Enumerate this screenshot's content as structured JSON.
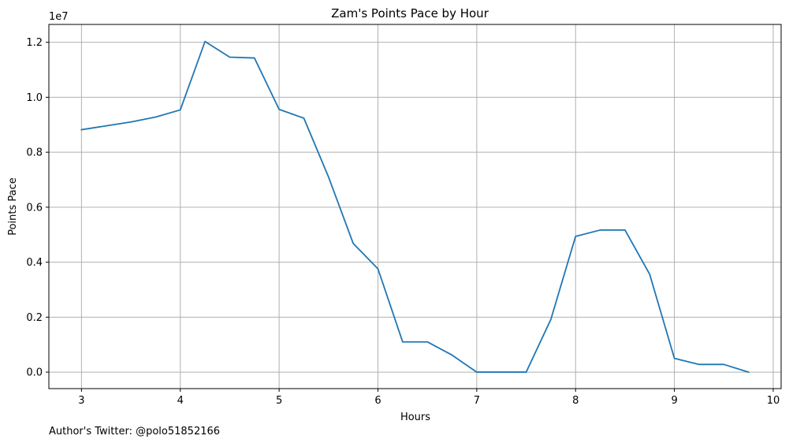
{
  "chart_data": {
    "type": "line",
    "title": "Zam's Points Pace by Hour",
    "xlabel": "Hours",
    "ylabel": "Points Pace",
    "y_offset_label": "1e7",
    "xlim": [
      2.67,
      10.08
    ],
    "ylim": [
      -600000,
      12650000
    ],
    "x_ticks": [
      3,
      4,
      5,
      6,
      7,
      8,
      9,
      10
    ],
    "x_tick_labels": [
      "3",
      "4",
      "5",
      "6",
      "7",
      "8",
      "9",
      "10"
    ],
    "y_ticks": [
      0,
      2000000,
      4000000,
      6000000,
      8000000,
      10000000,
      12000000
    ],
    "y_tick_labels": [
      "0.0",
      "0.2",
      "0.4",
      "0.6",
      "0.8",
      "1.0",
      "1.2"
    ],
    "grid": true,
    "series": [
      {
        "color": "#1f77b4",
        "x": [
          3,
          3.25,
          3.5,
          3.75,
          4,
          4.25,
          4.5,
          4.75,
          5,
          5.25,
          5.5,
          5.75,
          6,
          6.25,
          6.5,
          6.75,
          7,
          7.25,
          7.5,
          7.75,
          8,
          8.25,
          8.5,
          8.75,
          9,
          9.25,
          9.5,
          9.75
        ],
        "y": [
          8820000,
          8960000,
          9100000,
          9280000,
          9540000,
          12030000,
          11460000,
          11430000,
          9560000,
          9240000,
          7100000,
          4680000,
          3760000,
          1100000,
          1100000,
          620000,
          0,
          0,
          0,
          1920000,
          4940000,
          5170000,
          5170000,
          3560000,
          500000,
          280000,
          280000,
          0
        ]
      }
    ]
  },
  "footer": {
    "note": "Author's Twitter: @polo51852166"
  }
}
